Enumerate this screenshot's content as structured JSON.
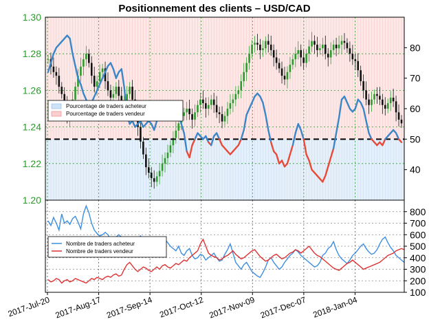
{
  "chart_data": [
    {
      "type": "candlestick+line",
      "title": "Positionnement des clients – USD/CAD",
      "y_left": {
        "range": [
          1.2,
          1.3
        ],
        "ticks": [
          "1.20",
          "1.22",
          "1.24",
          "1.26",
          "1.28",
          "1.30"
        ],
        "label_color": "#2a9a2a"
      },
      "y_right": {
        "range": [
          30,
          90
        ],
        "ticks": [
          "40",
          "50",
          "60",
          "70",
          "80"
        ]
      },
      "neutral_line": 50,
      "legend": [
        "Pourcentage de traders acheteur",
        "Pourcentage de traders vendeur"
      ],
      "price_series": {
        "name": "USD/CAD",
        "values": [
          1.277,
          1.273,
          1.27,
          1.268,
          1.262,
          1.258,
          1.252,
          1.245,
          1.248,
          1.255,
          1.262,
          1.268,
          1.273,
          1.277,
          1.28,
          1.275,
          1.268,
          1.262,
          1.265,
          1.27,
          1.272,
          1.265,
          1.26,
          1.256,
          1.258,
          1.262,
          1.257,
          1.252,
          1.254,
          1.258,
          1.262,
          1.255,
          1.248,
          1.24,
          1.232,
          1.225,
          1.218,
          1.215,
          1.212,
          1.21,
          1.213,
          1.216,
          1.22,
          1.223,
          1.226,
          1.23,
          1.234,
          1.238,
          1.242,
          1.246,
          1.248,
          1.25,
          1.247,
          1.244,
          1.248,
          1.252,
          1.255,
          1.253,
          1.25,
          1.252,
          1.255,
          1.252,
          1.248,
          1.247,
          1.243,
          1.246,
          1.25,
          1.253,
          1.255,
          1.258,
          1.26,
          1.265,
          1.27,
          1.275,
          1.28,
          1.285,
          1.286,
          1.285,
          1.282,
          1.283,
          1.287,
          1.285,
          1.282,
          1.278,
          1.275,
          1.272,
          1.268,
          1.266,
          1.27,
          1.274,
          1.277,
          1.28,
          1.282,
          1.278,
          1.275,
          1.28,
          1.284,
          1.287,
          1.285,
          1.282,
          1.283,
          1.285,
          1.28,
          1.278,
          1.282,
          1.285,
          1.283,
          1.285,
          1.287,
          1.286,
          1.283,
          1.28,
          1.277,
          1.276,
          1.271,
          1.265,
          1.26,
          1.255,
          1.252,
          1.255,
          1.258,
          1.257,
          1.255,
          1.252,
          1.25,
          1.253,
          1.256,
          1.254,
          1.248,
          1.244,
          1.242
        ]
      },
      "sentiment_series": {
        "name": "Pourcentage de traders acheteur",
        "values": [
          72,
          75,
          78,
          80,
          81,
          82,
          83,
          84,
          83,
          78,
          74,
          70,
          68,
          65,
          63,
          60,
          62,
          64,
          66,
          68,
          70,
          72,
          74,
          75,
          73,
          70,
          72,
          73,
          67,
          58,
          55,
          56,
          54,
          55,
          56,
          54,
          55,
          56,
          55,
          53,
          56,
          58,
          59,
          60,
          60,
          61,
          60,
          59,
          58,
          55,
          52,
          46,
          44,
          48,
          50,
          52,
          51,
          50,
          51,
          49,
          48,
          51,
          52,
          50,
          48,
          47,
          46,
          45,
          46,
          47,
          48,
          50,
          53,
          58,
          60,
          62,
          64,
          65,
          64,
          62,
          58,
          53,
          49,
          46,
          45,
          42,
          43,
          41,
          42,
          45,
          48,
          52,
          55,
          53,
          50,
          45,
          43,
          40,
          39,
          38,
          37,
          36,
          38,
          41,
          44,
          47,
          52,
          57,
          63,
          64,
          62,
          60,
          59,
          60,
          63,
          62,
          60,
          56,
          52,
          50,
          49,
          48,
          49,
          48,
          50,
          51,
          52,
          53,
          52,
          50,
          49,
          48,
          50
        ]
      }
    },
    {
      "type": "line",
      "y_right": {
        "range": [
          100,
          900
        ],
        "ticks": [
          "100",
          "200",
          "300",
          "400",
          "500",
          "600",
          "700",
          "800"
        ]
      },
      "x_tick_labels": [
        "2017-Jul-20",
        "2017-Aug-17",
        "2017-Sep-14",
        "2017-Oct-12",
        "2017-Nov-09",
        "2017-Dec-07",
        "2018-Jan-04"
      ],
      "legend": [
        "Nombre de traders acheteur",
        "Nombre de traders vendeur"
      ],
      "series": [
        {
          "name": "Nombre de traders acheteur",
          "color": "#3c8ee0",
          "values": [
            720,
            680,
            750,
            700,
            640,
            780,
            700,
            720,
            690,
            740,
            760,
            710,
            650,
            780,
            850,
            790,
            700,
            640,
            610,
            590,
            600,
            620,
            600,
            560,
            540,
            580,
            600,
            580,
            560,
            520,
            510,
            500,
            480,
            560,
            590,
            540,
            520,
            500,
            510,
            540,
            520,
            500,
            520,
            560,
            530,
            500,
            480,
            460,
            500,
            440,
            420,
            460,
            480,
            420,
            390,
            400,
            430,
            420,
            380,
            400,
            420,
            440,
            400,
            370,
            380,
            430,
            470,
            520,
            440,
            360,
            330,
            300,
            340,
            360,
            320,
            280,
            260,
            240,
            230,
            270,
            320,
            380,
            400,
            360,
            330,
            300,
            320,
            360,
            390,
            420,
            440,
            470,
            450,
            420,
            400,
            380,
            360,
            340,
            320,
            330,
            360,
            420,
            440,
            480,
            500,
            540,
            470,
            420,
            390,
            370,
            350,
            380,
            420,
            440,
            470,
            500,
            520,
            480,
            450,
            430,
            440,
            470,
            520,
            560,
            580,
            530,
            490,
            460,
            420,
            400,
            380,
            360
          ]
        },
        {
          "name": "Nombre de traders vendeur",
          "color": "#e03030",
          "values": [
            210,
            190,
            200,
            220,
            210,
            180,
            200,
            210,
            190,
            200,
            220,
            210,
            200,
            190,
            180,
            200,
            220,
            210,
            230,
            220,
            210,
            230,
            240,
            230,
            250,
            260,
            240,
            250,
            300,
            340,
            360,
            330,
            300,
            280,
            300,
            320,
            310,
            290,
            280,
            300,
            320,
            300,
            330,
            340,
            320,
            310,
            330,
            350,
            340,
            360,
            380,
            370,
            400,
            420,
            440,
            460,
            520,
            560,
            500,
            440,
            420,
            410,
            400,
            380,
            390,
            410,
            420,
            440,
            460,
            430,
            410,
            390,
            400,
            420,
            440,
            460,
            470,
            440,
            410,
            390,
            370,
            380,
            400,
            420,
            430,
            410,
            390,
            400,
            420,
            440,
            450,
            470,
            460,
            440,
            460,
            480,
            500,
            470,
            440,
            420,
            410,
            390,
            370,
            350,
            330,
            310,
            300,
            290,
            310,
            330,
            350,
            360,
            380,
            360,
            340,
            320,
            300,
            310,
            320,
            330,
            340,
            350,
            360,
            380,
            400,
            420,
            430,
            440,
            460,
            470,
            480,
            470
          ]
        }
      ]
    }
  ]
}
